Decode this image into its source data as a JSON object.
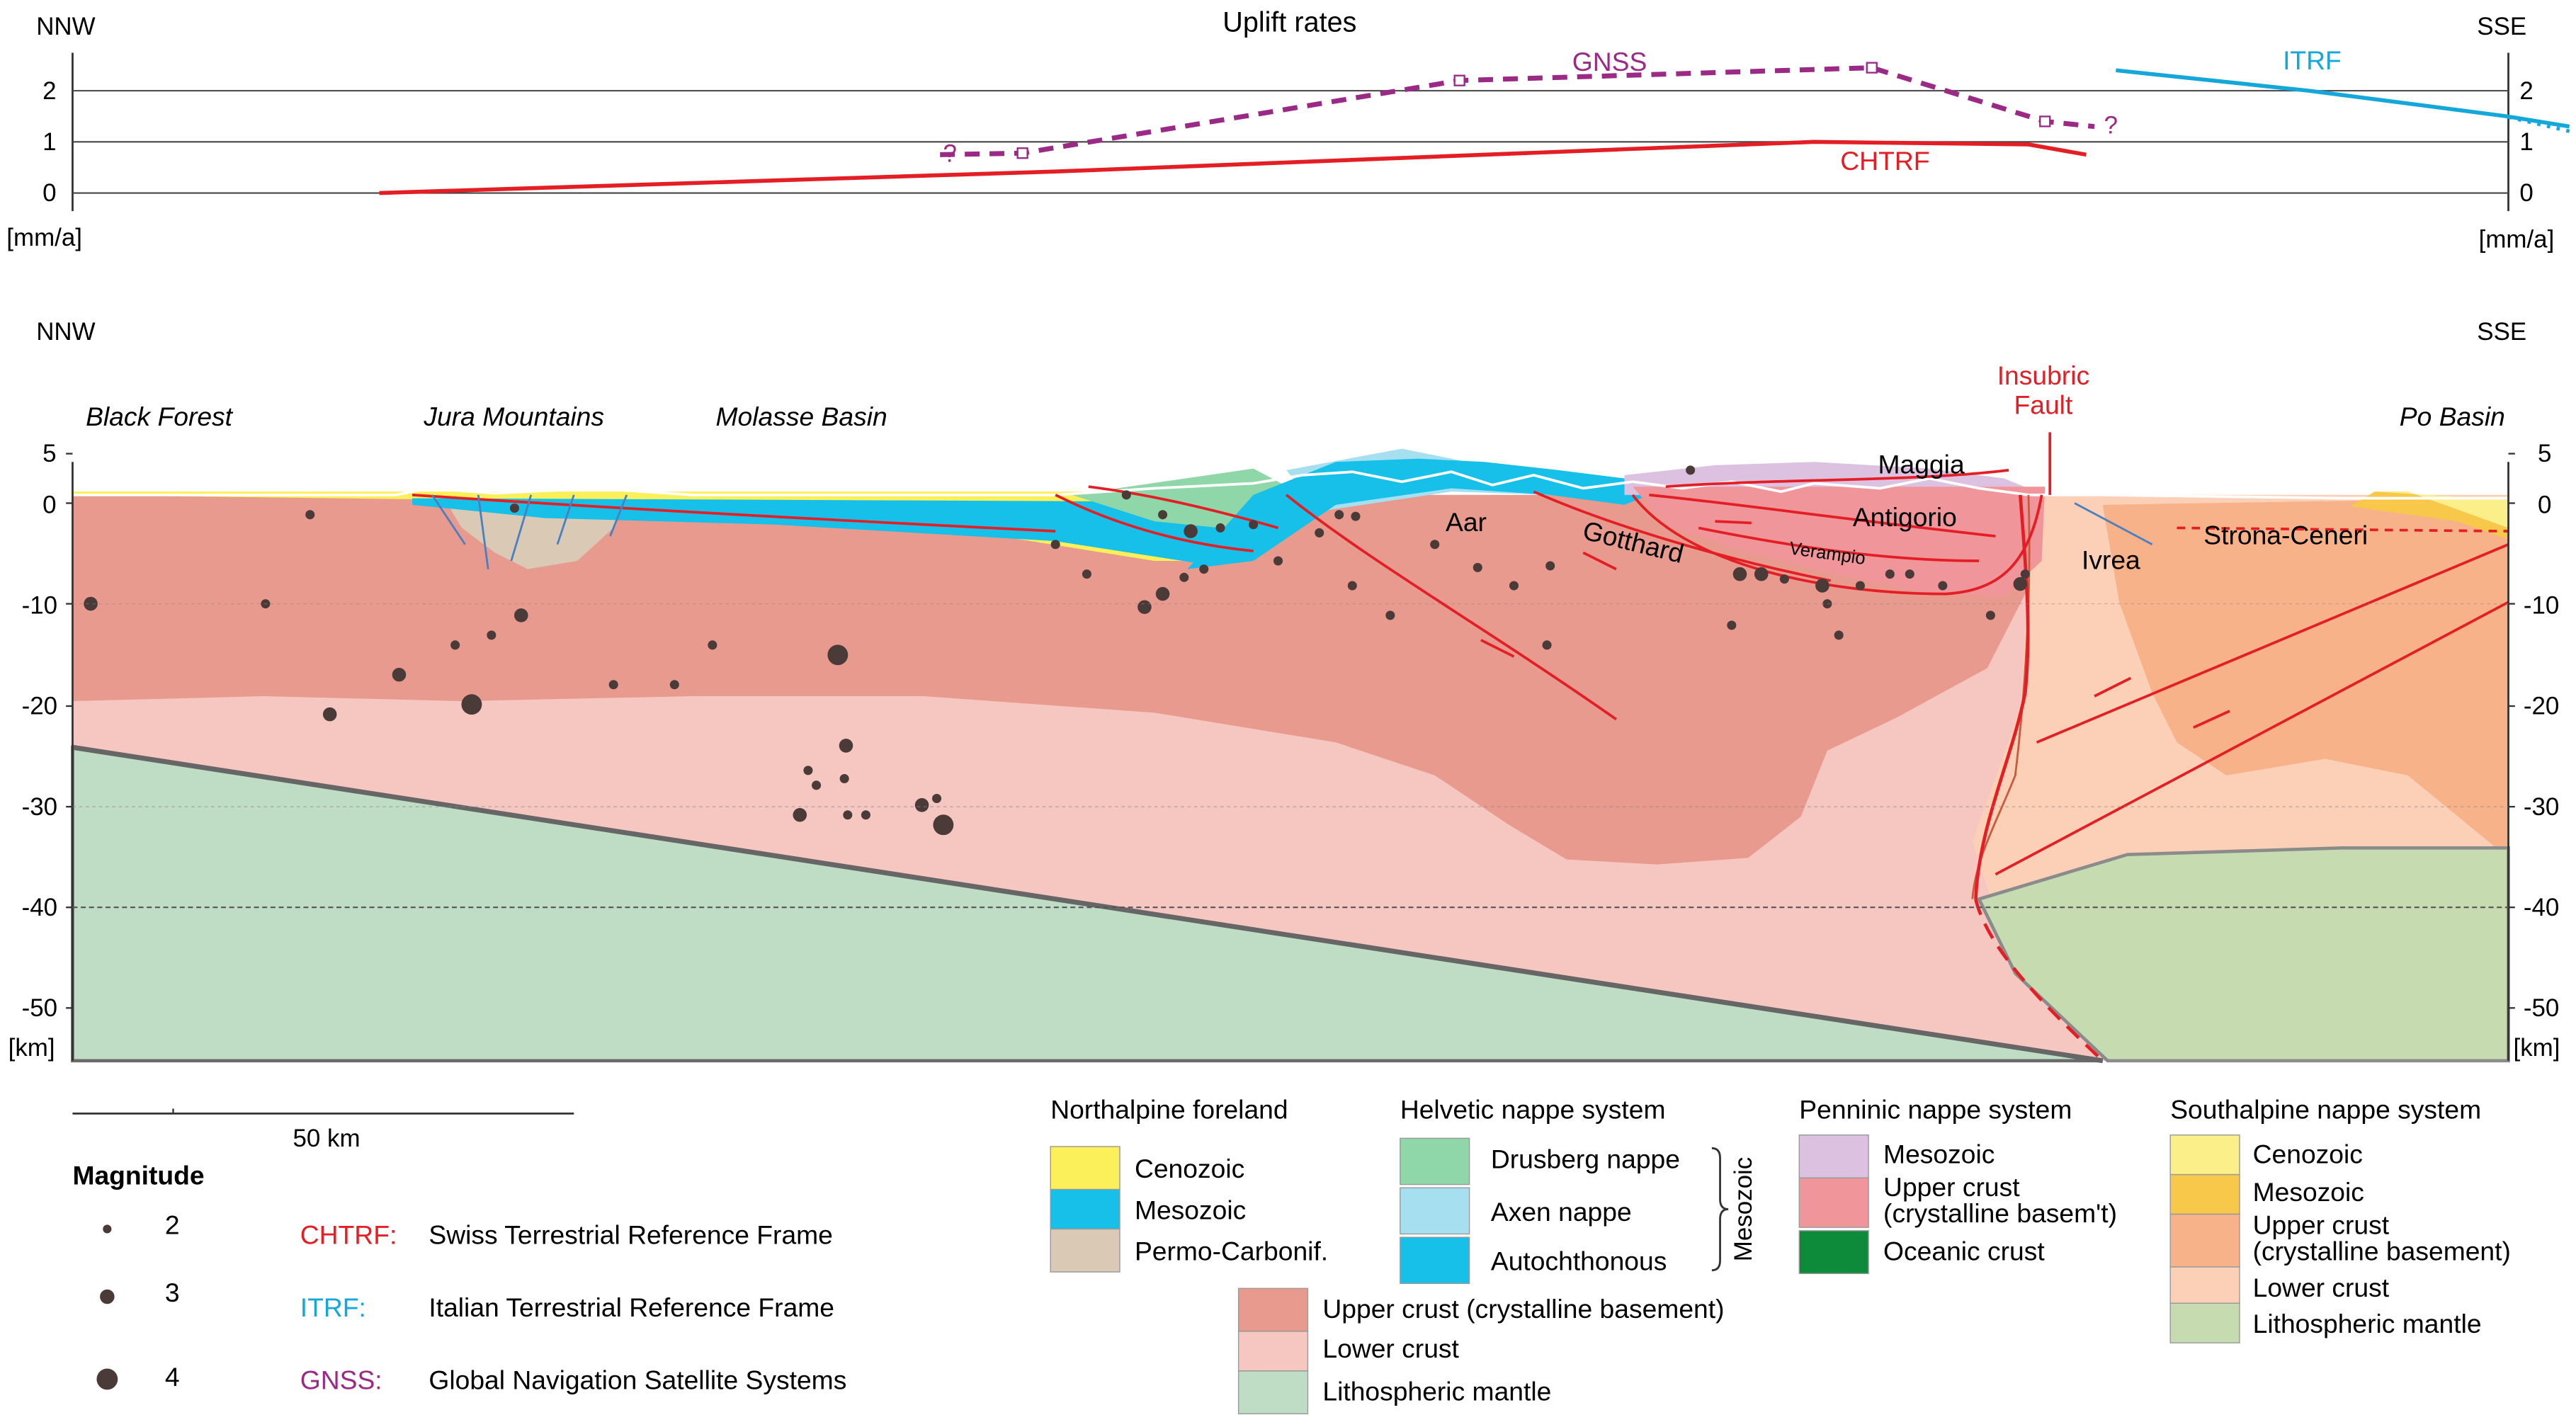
{
  "uplift": {
    "title": "Uplift rates",
    "dir_left": "NNW",
    "dir_right": "SSE",
    "unit_left": "[mm/a]",
    "unit_right": "[mm/a]",
    "ticks": [
      "2",
      "1",
      "0"
    ],
    "series": [
      {
        "name": "GNSS",
        "color": "#9b2a86",
        "style": "dashed",
        "x": [
          570,
          620,
          885,
          1135,
          1240,
          1270
        ],
        "y": [
          0.75,
          0.78,
          2.2,
          2.45,
          1.4,
          1.3
        ],
        "q_left": "?",
        "q_right": "?"
      },
      {
        "name": "CHTRF",
        "color": "#e31e24",
        "style": "solid",
        "x": [
          230,
          640,
          980,
          1100,
          1230,
          1265
        ],
        "y": [
          0,
          0.42,
          0.85,
          1.0,
          0.95,
          0.75
        ]
      },
      {
        "name": "ITRF",
        "color": "#14a7d9",
        "style": "solid",
        "x": [
          1283,
          1400,
          1520,
          1558
        ],
        "y": [
          2.4,
          2.0,
          1.5,
          1.3
        ]
      }
    ]
  },
  "section": {
    "dir_left": "NNW",
    "dir_right": "SSE",
    "unit_left": "[km]",
    "unit_right": "[km]",
    "depth_ticks": [
      "5",
      "0",
      "-10",
      "-20",
      "-30",
      "-40",
      "-50"
    ],
    "regions": [
      "Black Forest",
      "Jura Mountains",
      "Molasse Basin",
      "Po Basin"
    ],
    "units": [
      "Aar",
      "Gotthard",
      "Antigorio",
      "Maggia",
      "Verampio",
      "Ivrea",
      "Strona-Ceneri"
    ],
    "fault_label_1": "Insubric",
    "fault_label_2": "Fault"
  },
  "scale": {
    "label": "50 km"
  },
  "magnitude": {
    "title": "Magnitude",
    "items": [
      {
        "label": "2",
        "r": 2.5
      },
      {
        "label": "3",
        "r": 4.2
      },
      {
        "label": "4",
        "r": 6.2
      }
    ]
  },
  "frames": [
    {
      "abbr": "CHTRF:",
      "desc": "Swiss Terrestrial Reference Frame",
      "color": "#e31e24"
    },
    {
      "abbr": "ITRF:",
      "desc": "Italian Terrestrial Reference Frame",
      "color": "#14a7d9"
    },
    {
      "abbr": "GNSS:",
      "desc": "Global Navigation Satellite Systems",
      "color": "#9b2a86"
    }
  ],
  "legend": {
    "northalpine": {
      "title": "Northalpine foreland",
      "items": [
        {
          "label": "Cenozoic",
          "color": "#fbef5a"
        },
        {
          "label": "Mesozoic",
          "color": "#16c0e8"
        },
        {
          "label": "Permo-Carbonif.",
          "color": "#d9c9b5"
        }
      ]
    },
    "helvetic": {
      "title": "Helvetic nappe system",
      "bracket": "Mesozoic",
      "items": [
        {
          "label": "Drusberg nappe",
          "color": "#8fd6a8"
        },
        {
          "label": "Axen nappe",
          "color": "#a6e0f0"
        },
        {
          "label": "Autochthonous",
          "color": "#16c0e8"
        }
      ]
    },
    "penninic": {
      "title": "Penninic nappe system",
      "items": [
        {
          "label": "Mesozoic",
          "color": "#dcc1e0"
        },
        {
          "label": "Upper crust",
          "label2": "(crystalline basem't)",
          "color": "#f0969a"
        },
        {
          "label": "Oceanic crust",
          "color": "#0d8a3a"
        }
      ]
    },
    "southalpine": {
      "title": "Southalpine nappe system",
      "items": [
        {
          "label": "Cenozoic",
          "color": "#fbef8a"
        },
        {
          "label": "Mesozoic",
          "color": "#f7c84a"
        },
        {
          "label": "Upper crust",
          "label2": "(crystalline basement)",
          "color": "#f7b28a"
        },
        {
          "label": "Lower crust",
          "color": "#fcd0b6"
        },
        {
          "label": "Lithospheric mantle",
          "color": "#c6dbb0"
        }
      ]
    },
    "common": {
      "items": [
        {
          "label": "Upper crust (crystalline basement)",
          "color": "#e89a8e"
        },
        {
          "label": "Lower crust",
          "color": "#f5c7c0"
        },
        {
          "label": "Lithospheric mantle",
          "color": "#bfdcc4"
        }
      ]
    }
  }
}
